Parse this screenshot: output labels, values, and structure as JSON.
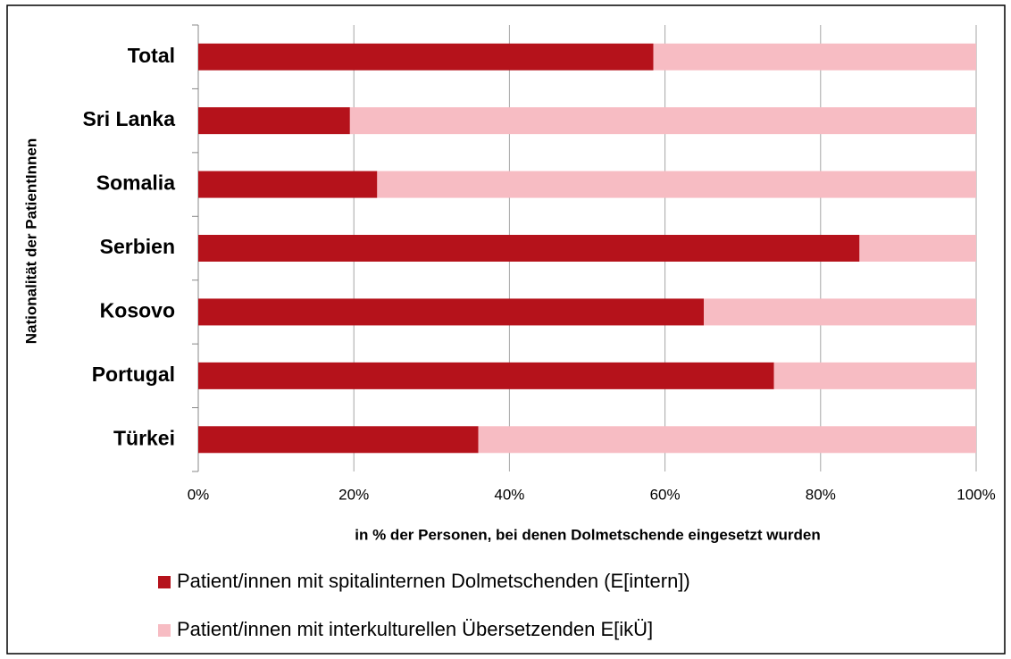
{
  "chart_data": {
    "type": "stacked_bar_horizontal",
    "categories": [
      "Total",
      "Sri Lanka",
      "Somalia",
      "Serbien",
      "Kosovo",
      "Portugal",
      "Türkei"
    ],
    "series": [
      {
        "name": "Patient/innen mit spitalinternen Dolmetschenden (E[intern])",
        "color": "#b5121b",
        "values": [
          58.5,
          19.5,
          23,
          85,
          65,
          74,
          36
        ]
      },
      {
        "name": "Patient/innen mit interkulturellen Übersetzenden E[ikÜ]",
        "color": "#f7bcc3",
        "values": [
          41.5,
          80.5,
          77,
          15,
          35,
          26,
          64
        ]
      }
    ],
    "xlabel": "in % der Personen, bei denen Dolmetschende eingesetzt wurden",
    "ylabel": "Nationalität der PatientInnen",
    "xlim": [
      0,
      100
    ],
    "xticks": [
      {
        "value": 0,
        "label": "0%"
      },
      {
        "value": 20,
        "label": "20%"
      },
      {
        "value": 40,
        "label": "40%"
      },
      {
        "value": 60,
        "label": "60%"
      },
      {
        "value": 80,
        "label": "80%"
      },
      {
        "value": 100,
        "label": "100%"
      }
    ],
    "grid": true,
    "legend": "bottom"
  }
}
